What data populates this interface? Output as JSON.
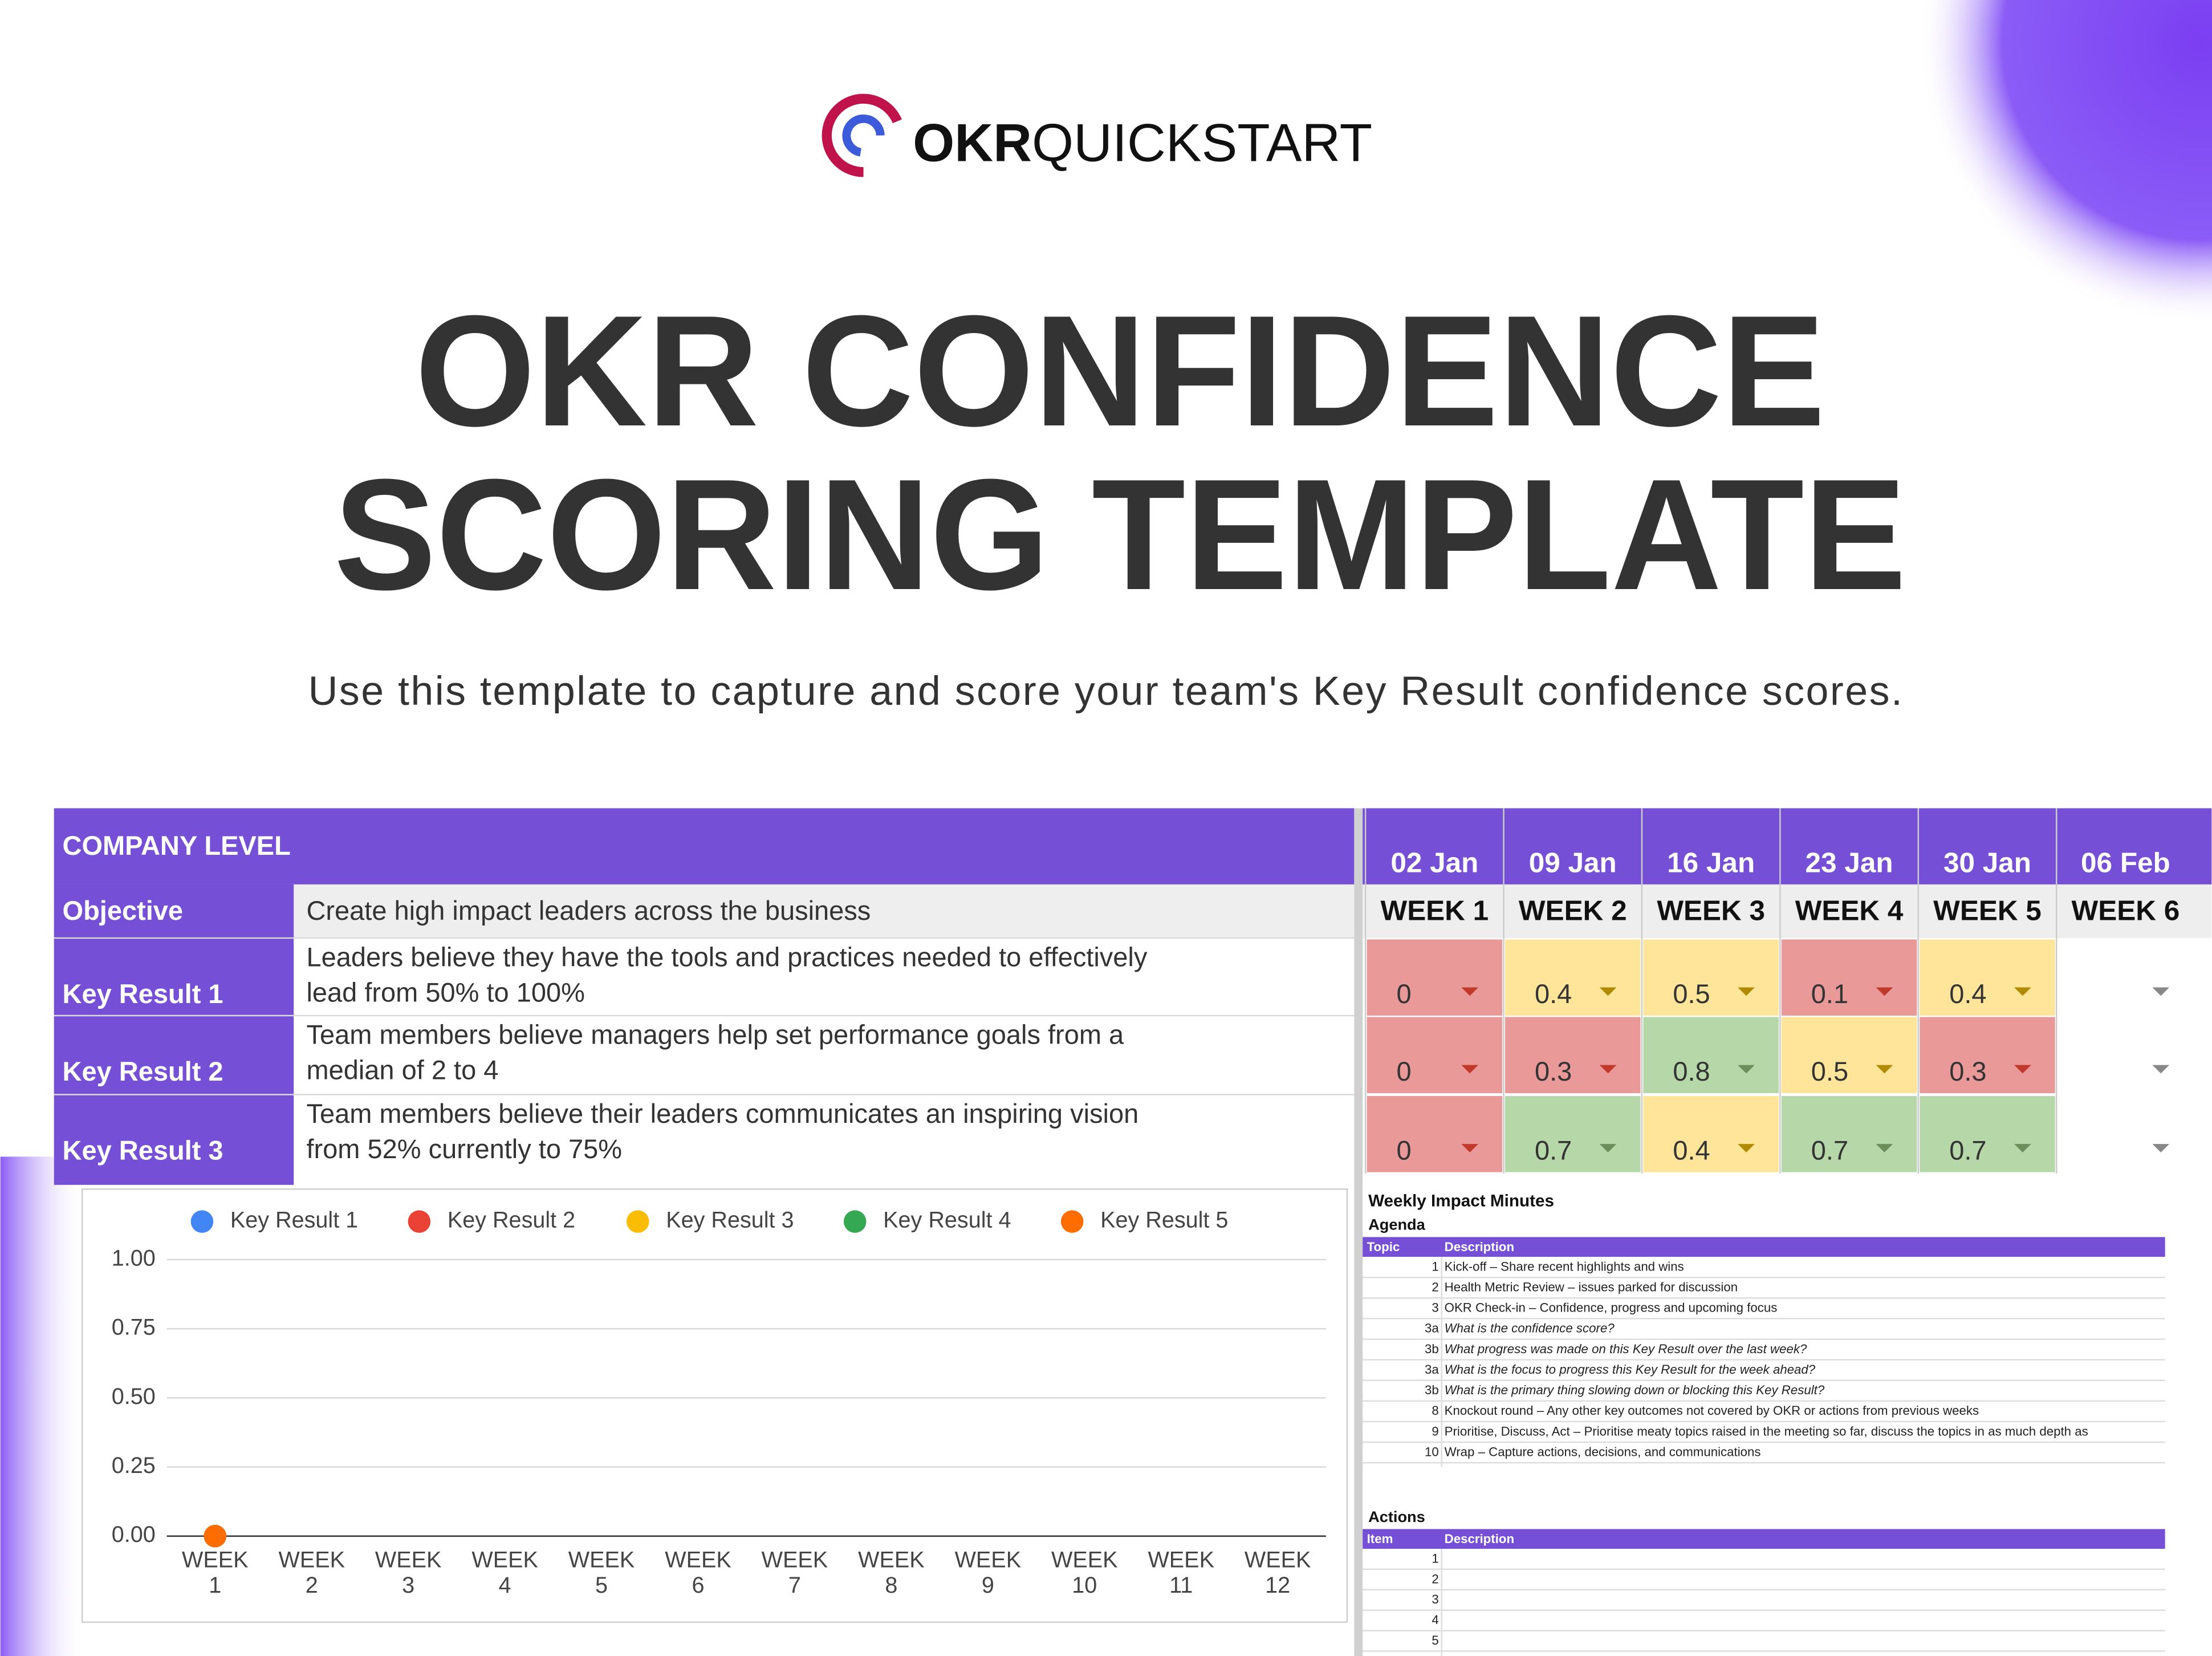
{
  "header": {
    "logo_bold": "OKR",
    "logo_light": "QUICKSTART",
    "title_line1": "OKR CONFIDENCE",
    "title_line2": "SCORING TEMPLATE",
    "subtitle": "Use this template to capture and score your team's Key Result confidence scores."
  },
  "table": {
    "section": "COMPANY LEVEL",
    "objective_label": "Objective",
    "objective": "Create high impact leaders across the business",
    "key_results": [
      {
        "label": "Key Result 1",
        "line1": "Leaders believe they have the tools and practices needed to effectively",
        "line2": "lead from 50% to 100%"
      },
      {
        "label": "Key Result 2",
        "line1": "Team members believe managers help set performance goals from a",
        "line2": "median of 2 to 4"
      },
      {
        "label": "Key Result 3",
        "line1": "Team members believe their leaders communicates an inspiring vision",
        "line2": "from 52% currently to 75%"
      }
    ]
  },
  "weeks": {
    "dates": [
      "02 Jan",
      "09 Jan",
      "16 Jan",
      "23 Jan",
      "30 Jan",
      "06 Feb"
    ],
    "labels": [
      "WEEK 1",
      "WEEK 2",
      "WEEK 3",
      "WEEK 4",
      "WEEK 5",
      "WEEK 6"
    ],
    "scores": [
      {
        "values": [
          0,
          0.4,
          0.5,
          0.1,
          0.4,
          null
        ],
        "colors": [
          "#ea9999",
          "#ffe599",
          "#ffe599",
          "#ea9999",
          "#ffe599",
          "#ffffff"
        ]
      },
      {
        "values": [
          0,
          0.3,
          0.8,
          0.5,
          0.3,
          null
        ],
        "colors": [
          "#ea9999",
          "#ea9999",
          "#b6d7a8",
          "#ffe599",
          "#ea9999",
          "#ffffff"
        ]
      },
      {
        "values": [
          0,
          0.7,
          0.4,
          0.7,
          0.7,
          null
        ],
        "colors": [
          "#ea9999",
          "#b6d7a8",
          "#ffe599",
          "#b6d7a8",
          "#b6d7a8",
          "#ffffff"
        ]
      }
    ]
  },
  "chart_data": {
    "type": "line",
    "categories": [
      "WEEK 1",
      "WEEK 2",
      "WEEK 3",
      "WEEK 4",
      "WEEK 5",
      "WEEK 6",
      "WEEK 7",
      "WEEK 8",
      "WEEK 9",
      "WEEK 10",
      "WEEK 11",
      "WEEK 12"
    ],
    "series": [
      {
        "name": "Key Result 1",
        "color": "#4285f4",
        "values": [
          0,
          null,
          null,
          null,
          null,
          null,
          null,
          null,
          null,
          null,
          null,
          null
        ]
      },
      {
        "name": "Key Result 2",
        "color": "#ea4335",
        "values": [
          0,
          null,
          null,
          null,
          null,
          null,
          null,
          null,
          null,
          null,
          null,
          null
        ]
      },
      {
        "name": "Key Result 3",
        "color": "#fbbc04",
        "values": [
          0,
          null,
          null,
          null,
          null,
          null,
          null,
          null,
          null,
          null,
          null,
          null
        ]
      },
      {
        "name": "Key Result 4",
        "color": "#34a853",
        "values": [
          0,
          null,
          null,
          null,
          null,
          null,
          null,
          null,
          null,
          null,
          null,
          null
        ]
      },
      {
        "name": "Key Result 5",
        "color": "#ff6d01",
        "values": [
          0,
          null,
          null,
          null,
          null,
          null,
          null,
          null,
          null,
          null,
          null,
          null
        ]
      }
    ],
    "ylim": [
      0,
      1
    ],
    "yticks": [
      {
        "value": 0,
        "label": "0.00"
      },
      0.25,
      {
        "value": 0.5,
        "label": "0.50"
      },
      0.75,
      {
        "value": 1,
        "label": "1.00"
      }
    ],
    "grid": true,
    "legend": "top"
  },
  "minutes": {
    "title": "Weekly Impact Minutes",
    "agenda": "Agenda",
    "agenda_headers": [
      "Topic",
      "Description"
    ],
    "agenda_rows": [
      [
        "1",
        "Kick-off – Share recent highlights and wins"
      ],
      [
        "2",
        "Health Metric Review – issues parked for discussion"
      ],
      [
        "3",
        "OKR Check-in – Confidence, progress and upcoming focus"
      ],
      [
        "3a",
        "What is the confidence score?"
      ],
      [
        "3b",
        "What progress was made on this Key Result over the last week?"
      ],
      [
        "3a",
        "What is the focus to progress this Key Result for the week ahead?"
      ],
      [
        "3b",
        "What is the primary thing slowing down or blocking this Key Result?"
      ],
      [
        "8",
        "Knockout round – Any other key outcomes not covered by OKR or actions from previous weeks"
      ],
      [
        "9",
        "Prioritise, Discuss, Act – Prioritise meaty topics raised in the meeting so far, discuss the topics in as much depth as"
      ],
      [
        "10",
        "Wrap – Capture actions, decisions, and communications"
      ]
    ],
    "actions": "Actions",
    "action_headers": [
      "Item",
      "Description"
    ],
    "action_items": [
      "1",
      "2",
      "3",
      "4",
      "5"
    ]
  }
}
